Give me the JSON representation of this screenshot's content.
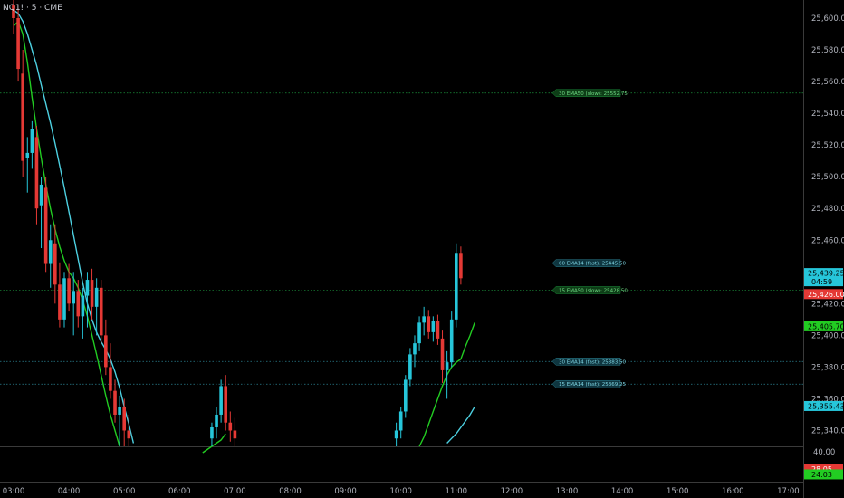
{
  "ticker": "NQ1! · 5 · CME",
  "colors": {
    "background": "#000000",
    "up": "#26c6da",
    "down": "#e53935",
    "ema_fast": "#22cc22",
    "ema_slow": "#4dd0e1",
    "level_green": "#1b8f3a",
    "level_blue": "#2b7f8f"
  },
  "chart_data": {
    "type": "candlestick",
    "title": "",
    "xlabel": "",
    "ylabel": "",
    "ylim": [
      25330,
      25618
    ],
    "y_ticks": [
      "25,600.00",
      "25,580.00",
      "25,560.00",
      "25,540.00",
      "25,520.00",
      "25,500.00",
      "25,480.00",
      "25,460.00",
      "25,420.00",
      "25,400.00",
      "25,380.00",
      "25,360.00",
      "25,340.00"
    ],
    "x_ticks": [
      "03:00",
      "04:00",
      "05:00",
      "06:00",
      "07:00",
      "08:00",
      "09:00",
      "10:00",
      "11:00",
      "12:00",
      "13:00",
      "14:00",
      "15:00",
      "16:00",
      "17:00"
    ],
    "candles_segment_1": [
      [
        25608,
        25614,
        25590,
        25600
      ],
      [
        25600,
        25606,
        25560,
        25568
      ],
      [
        25565,
        25580,
        25500,
        25510
      ],
      [
        25512,
        25525,
        25490,
        25515
      ],
      [
        25515,
        25535,
        25505,
        25530
      ],
      [
        25525,
        25532,
        25470,
        25480
      ],
      [
        25482,
        25500,
        25455,
        25495
      ],
      [
        25493,
        25500,
        25440,
        25445
      ],
      [
        25445,
        25470,
        25430,
        25460
      ],
      [
        25458,
        25470,
        25420,
        25432
      ],
      [
        25432,
        25446,
        25405,
        25410
      ],
      [
        25410,
        25440,
        25405,
        25436
      ],
      [
        25436,
        25445,
        25415,
        25420
      ],
      [
        25420,
        25440,
        25400,
        25428
      ],
      [
        25428,
        25435,
        25405,
        25412
      ],
      [
        25412,
        25430,
        25398,
        25425
      ],
      [
        25425,
        25440,
        25405,
        25435
      ],
      [
        25435,
        25442,
        25410,
        25418
      ],
      [
        25418,
        25436,
        25400,
        25430
      ],
      [
        25430,
        25435,
        25395,
        25400
      ],
      [
        25400,
        25410,
        25375,
        25380
      ],
      [
        25380,
        25395,
        25360,
        25365
      ],
      [
        25365,
        25372,
        25345,
        25350
      ],
      [
        25350,
        25362,
        25330,
        25355
      ],
      [
        25355,
        25360,
        25330,
        25340
      ],
      [
        25340,
        25350,
        25330,
        25335
      ]
    ],
    "candles_segment_2": [
      [
        25335,
        25345,
        25330,
        25342
      ],
      [
        25342,
        25355,
        25335,
        25350
      ],
      [
        25350,
        25372,
        25345,
        25368
      ],
      [
        25368,
        25375,
        25340,
        25345
      ],
      [
        25345,
        25352,
        25333,
        25340
      ],
      [
        25340,
        25348,
        25330,
        25335
      ]
    ],
    "candles_segment_3": [
      [
        25335,
        25345,
        25330,
        25340
      ],
      [
        25340,
        25355,
        25335,
        25352
      ],
      [
        25352,
        25375,
        25348,
        25372
      ],
      [
        25372,
        25392,
        25368,
        25388
      ],
      [
        25388,
        25400,
        25380,
        25395
      ],
      [
        25395,
        25412,
        25390,
        25408
      ],
      [
        25408,
        25418,
        25400,
        25412
      ],
      [
        25412,
        25416,
        25398,
        25402
      ],
      [
        25402,
        25412,
        25396,
        25409
      ],
      [
        25409,
        25413,
        25394,
        25398
      ],
      [
        25398,
        25403,
        25370,
        25378
      ],
      [
        25378,
        25390,
        25360,
        25383
      ],
      [
        25383,
        25415,
        25380,
        25410
      ],
      [
        25410,
        25458,
        25405,
        25452
      ],
      [
        25452,
        25456,
        25432,
        25436
      ]
    ],
    "ema_fast_segment_1": [
      25595,
      25598,
      25590,
      25572,
      25550,
      25530,
      25512,
      25495,
      25480,
      25467,
      25456,
      25447,
      25440,
      25436,
      25430,
      25422,
      25412,
      25400,
      25388,
      25375,
      25362,
      25350,
      25340,
      25330
    ],
    "ema_fast_segment_2": [
      25326,
      25328,
      25330,
      25332,
      25334,
      25338
    ],
    "ema_fast_segment_3": [
      25330,
      25336,
      25344,
      25352,
      25360,
      25368,
      25375,
      25380,
      25383,
      25385,
      25393,
      25400,
      25408
    ],
    "ema_slow_segment_1": [
      25605,
      25603,
      25598,
      25590,
      25580,
      25570,
      25558,
      25546,
      25534,
      25521,
      25507,
      25493,
      25478,
      25463,
      25448,
      25433,
      25420,
      25410,
      25402,
      25396,
      25391,
      25385,
      25377,
      25367,
      25355,
      25344,
      25332
    ],
    "ema_slow_segment_2": [
      25332,
      25335,
      25338,
      25342,
      25346,
      25350,
      25355
    ],
    "levels": [
      {
        "price": 25552.75,
        "label": "30 EMA50 (slow): 25552.75",
        "style": "green"
      },
      {
        "price": 25445.5,
        "label": "60 EMA14 (fast): 25445.50",
        "style": "blue"
      },
      {
        "price": 25428.5,
        "label": "15 EMA50 (slow): 25428.50",
        "style": "green"
      },
      {
        "price": 25383.5,
        "label": "30 EMA14 (fast): 25383.50",
        "style": "blue"
      },
      {
        "price": 25369.25,
        "label": "15 EMA14 (fast): 25369.25",
        "style": "blue"
      }
    ],
    "price_badges": [
      {
        "price": 25439.25,
        "text": "25,439.25",
        "sub": "04:59",
        "bg": "#26c6da",
        "fg": "#000000"
      },
      {
        "price": 25426.0,
        "text": "25,426.00",
        "bg": "#e53935",
        "fg": "#ffffff"
      },
      {
        "price": 25405.7,
        "text": "25,405.70",
        "bg": "#22cc22",
        "fg": "#000000"
      },
      {
        "price": 25355.43,
        "text": "25,355.43",
        "bg": "#26c6da",
        "fg": "#000000"
      }
    ],
    "indicator_pane": {
      "tick": "40.00",
      "badges": [
        {
          "value": 28.05,
          "text": "28.05",
          "bg": "#e53935",
          "fg": "#ffffff"
        },
        {
          "value": 24.03,
          "text": "24.03",
          "bg": "#22cc22",
          "fg": "#000000"
        }
      ]
    }
  }
}
